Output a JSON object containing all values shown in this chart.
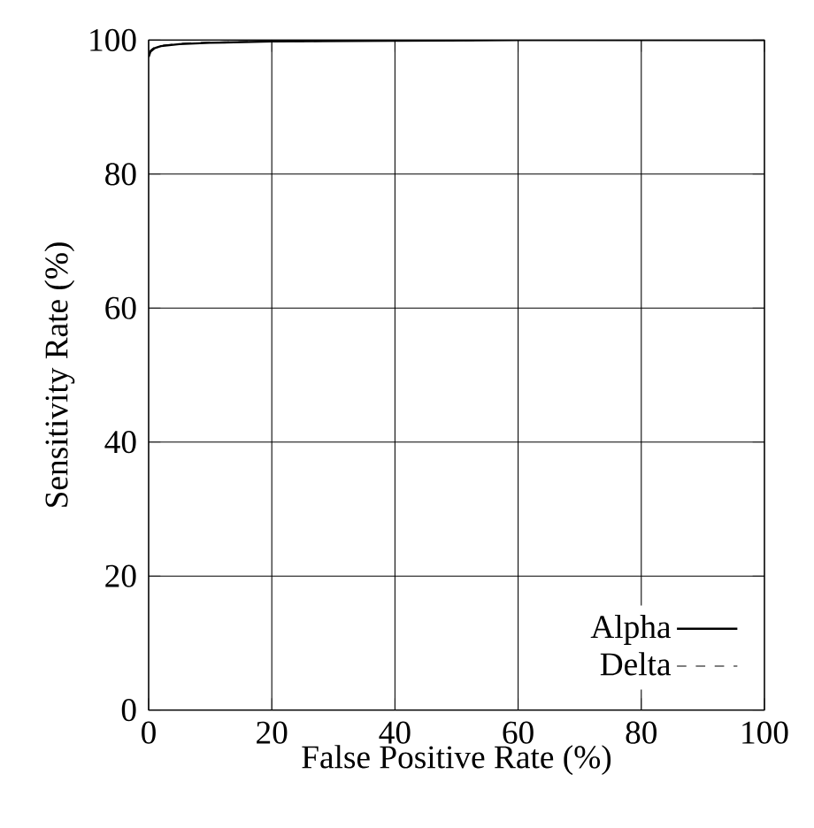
{
  "chart_data": {
    "type": "line",
    "xlabel": "False Positive Rate (%)",
    "ylabel": "Sensitivity Rate (%)",
    "x": [
      0,
      0.3,
      1,
      2,
      5,
      10,
      20,
      40,
      60,
      80,
      100
    ],
    "series": [
      {
        "name": "Alpha",
        "color": "#000000",
        "line_style": "solid",
        "values": [
          97.5,
          98.3,
          98.8,
          99.1,
          99.4,
          99.6,
          99.8,
          99.9,
          100,
          100,
          100
        ]
      },
      {
        "name": "Delta",
        "color": "#000000",
        "line_style": "dashed",
        "values": [
          97.8,
          98.5,
          99.0,
          99.2,
          99.5,
          99.7,
          99.8,
          99.9,
          100,
          100,
          100
        ]
      }
    ],
    "xlim": [
      0,
      100
    ],
    "ylim": [
      0,
      100
    ],
    "xticks": [
      0,
      20,
      40,
      60,
      80,
      100
    ],
    "yticks": [
      0,
      20,
      40,
      60,
      80,
      100
    ],
    "grid": true,
    "legend": "bottom right",
    "marker": "none"
  }
}
